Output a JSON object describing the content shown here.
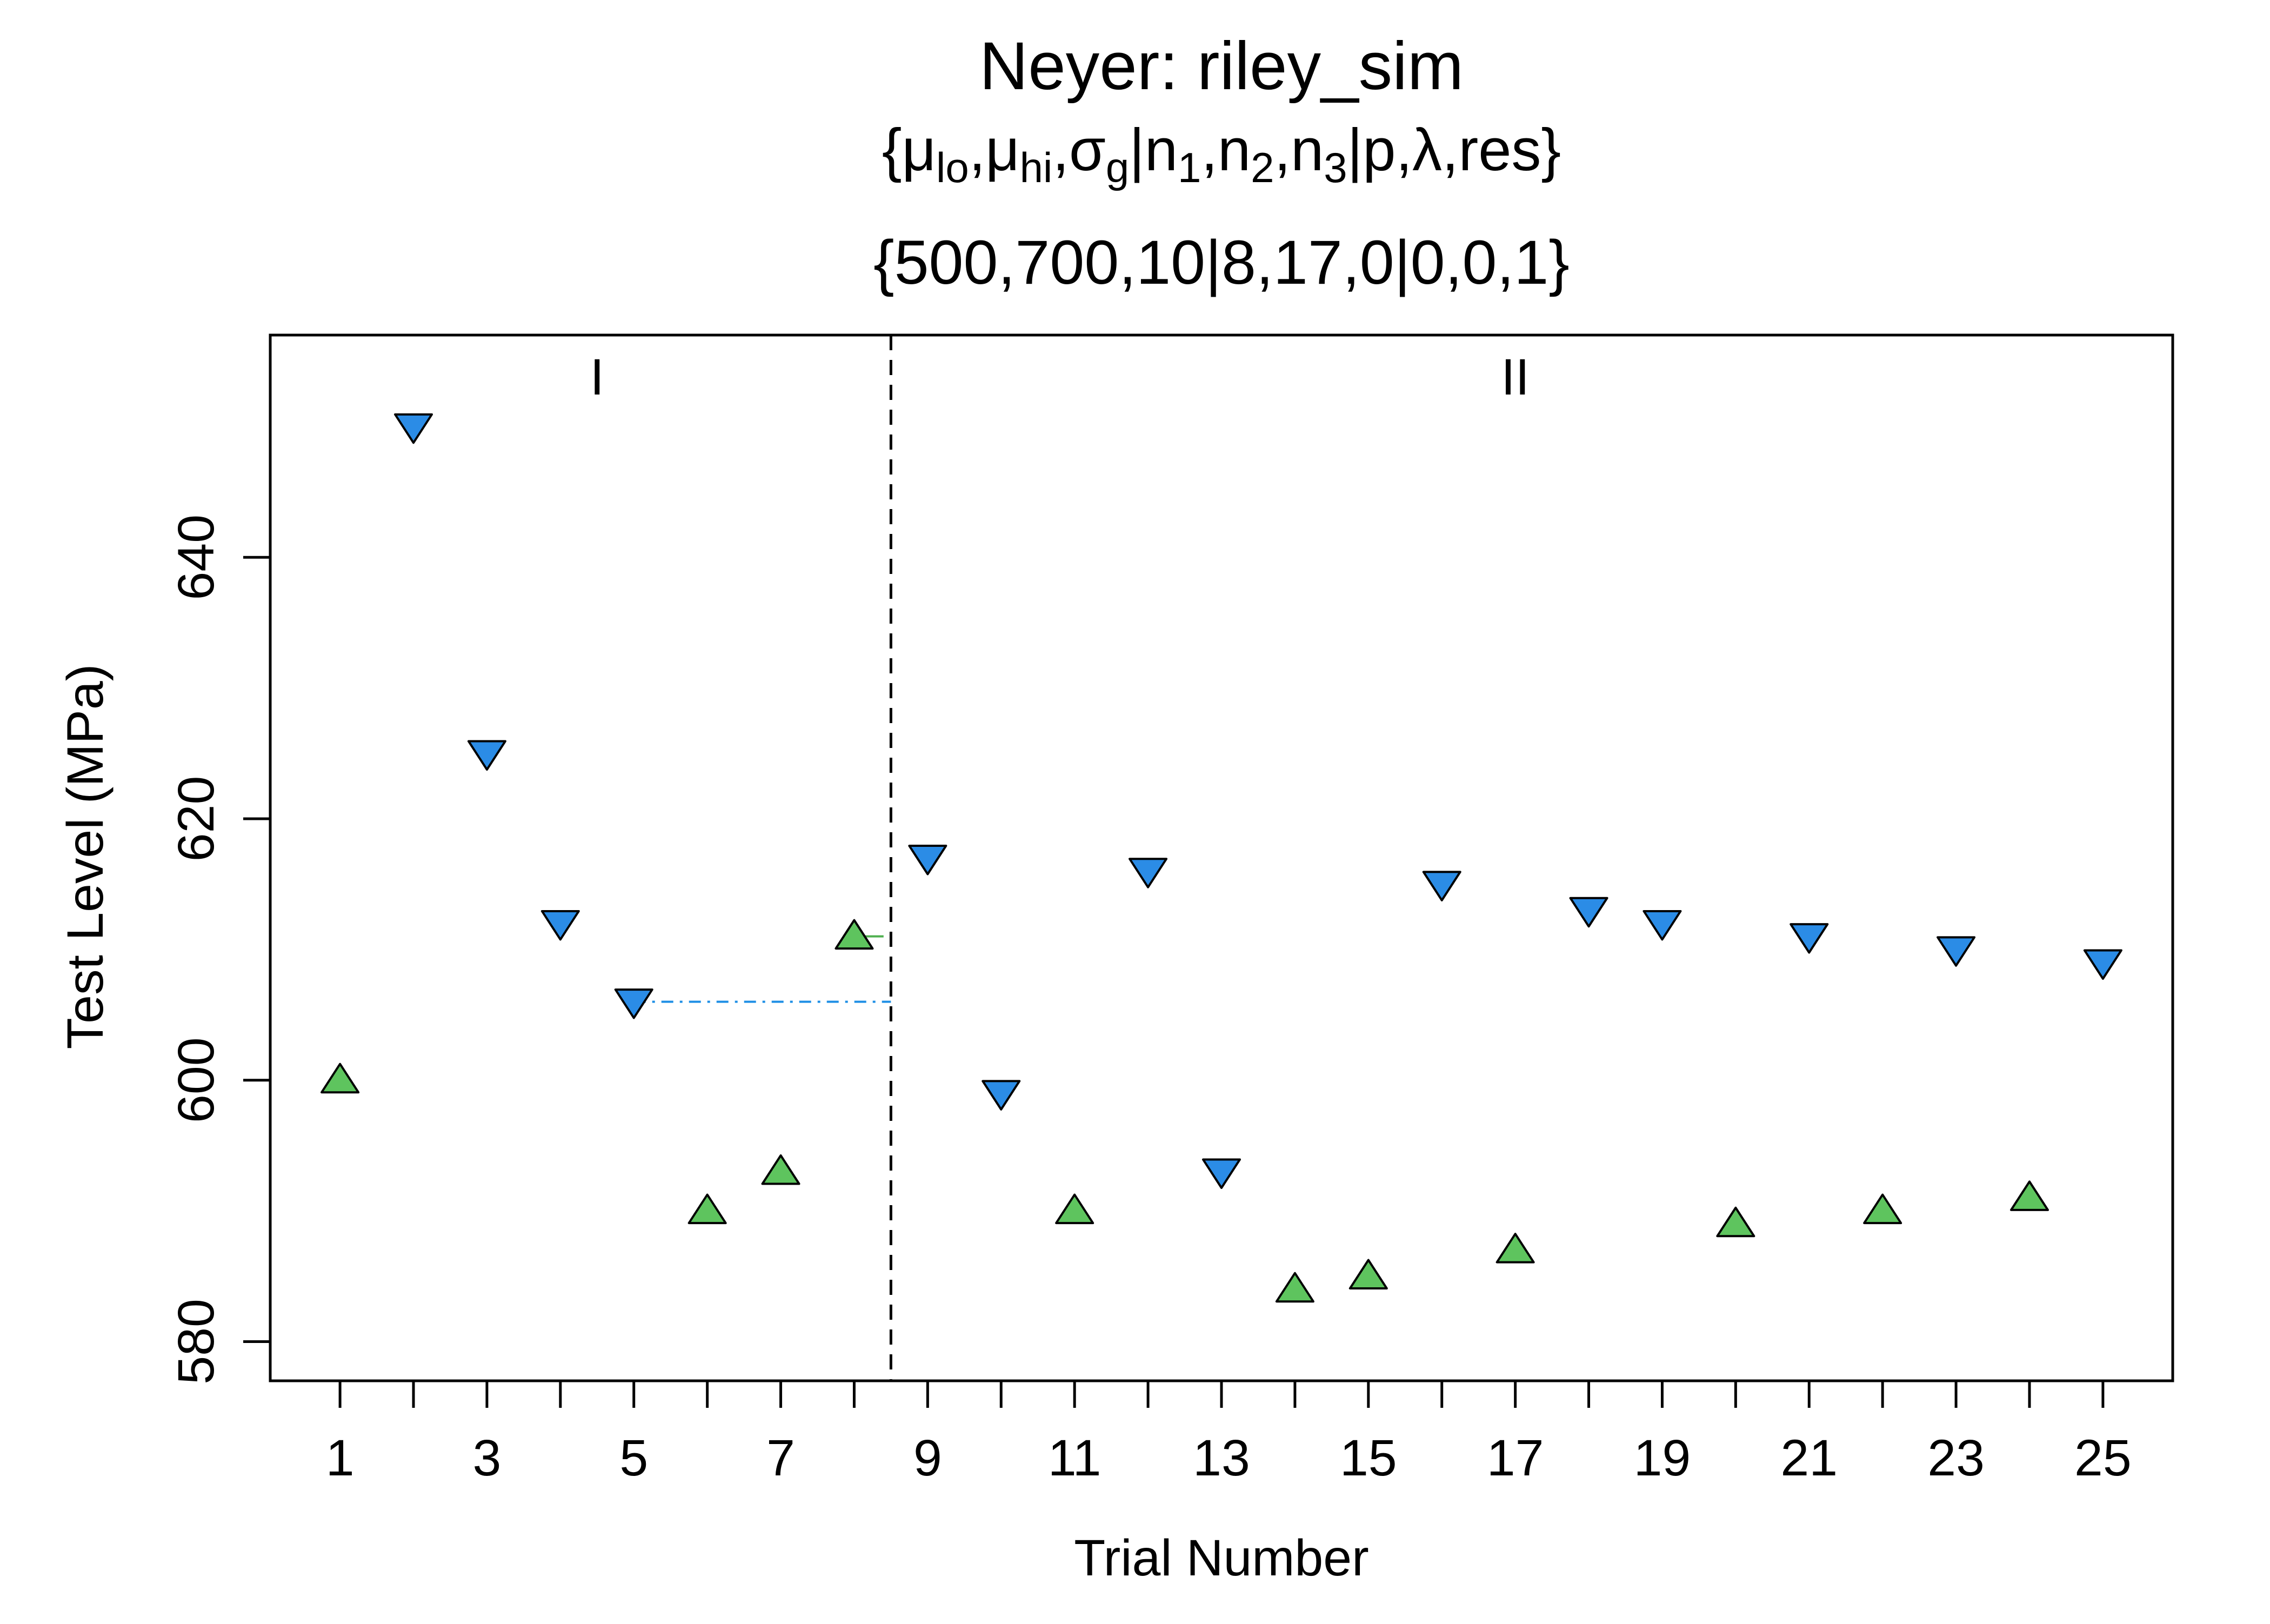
{
  "chart_data": {
    "type": "scatter",
    "title": "Neyer: riley_sim",
    "subtitle_params": {
      "open": "{",
      "mu": "μ",
      "lo": "lo",
      "hi": "hi",
      "sigma": "σ",
      "g": "g",
      "n": "n",
      "sub1": "1",
      "sub2": "2",
      "sub3": "3",
      "p": "p",
      "lambda": "λ",
      "res": "res",
      "comma": ",",
      "bar": "|",
      "close": "}"
    },
    "subtitle_values": "{500,700,10|8,17,0|0,0,1}",
    "xlabel": "Trial Number",
    "ylabel": "Test Level (MPa)",
    "xlim": [
      0.05,
      25.95
    ],
    "ylim": [
      577,
      657
    ],
    "x_ticks": [
      1,
      3,
      5,
      7,
      9,
      11,
      13,
      15,
      17,
      19,
      21,
      23,
      25
    ],
    "x_minor_ticks": [
      2,
      4,
      6,
      8,
      10,
      12,
      14,
      16,
      18,
      20,
      22,
      24
    ],
    "y_ticks": [
      580,
      600,
      620,
      640
    ],
    "phase_labels": [
      {
        "label": "I",
        "x": 4.5
      },
      {
        "label": "II",
        "x": 17
      }
    ],
    "phase_divider_x": 8.5,
    "guide_lines": [
      {
        "y": 606,
        "x_from": 5,
        "x_to": 8.5,
        "color": "#1f8fe5",
        "style": "dashdot"
      },
      {
        "y": 611,
        "x_from": 8,
        "x_to": 8.4,
        "color": "#4fb04f",
        "style": "solid"
      }
    ],
    "colors": {
      "response": "#5ec45e",
      "nonresponse": "#2b8ce6"
    },
    "series": [
      {
        "marker": "triangle-up",
        "points": [
          [
            1,
            600
          ],
          [
            6,
            590
          ],
          [
            7,
            593
          ],
          [
            8,
            611
          ],
          [
            11,
            590
          ],
          [
            14,
            584
          ],
          [
            15,
            585
          ],
          [
            17,
            587
          ],
          [
            20,
            589
          ],
          [
            22,
            590
          ],
          [
            24,
            591
          ]
        ]
      },
      {
        "marker": "triangle-down",
        "points": [
          [
            2,
            650
          ],
          [
            3,
            625
          ],
          [
            4,
            612
          ],
          [
            5,
            606
          ],
          [
            9,
            617
          ],
          [
            10,
            599
          ],
          [
            12,
            616
          ],
          [
            13,
            593
          ],
          [
            16,
            615
          ],
          [
            18,
            613
          ],
          [
            19,
            612
          ],
          [
            21,
            611
          ],
          [
            23,
            610
          ],
          [
            25,
            609
          ]
        ]
      }
    ]
  }
}
